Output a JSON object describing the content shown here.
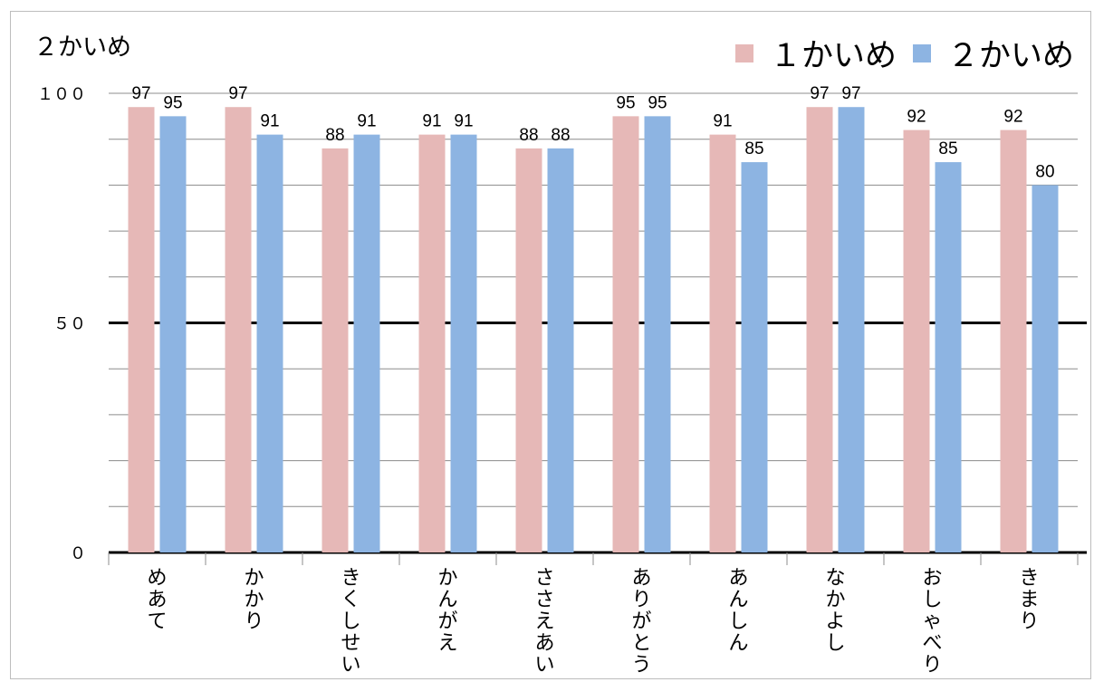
{
  "chart_data": {
    "type": "bar",
    "title": "２かいめ",
    "categories": [
      "めあて",
      "かかり",
      "きくしせい",
      "かんがえ",
      "ささえあい",
      "ありがとう",
      "あんしん",
      "なかよし",
      "おしゃべり",
      "きまり"
    ],
    "series": [
      {
        "name": "１かいめ",
        "color": "#e6b8b7",
        "values": [
          97,
          97,
          88,
          91,
          88,
          95,
          91,
          97,
          92,
          92
        ]
      },
      {
        "name": "２かいめ",
        "color": "#8db4e2",
        "values": [
          95,
          91,
          91,
          91,
          88,
          95,
          85,
          97,
          85,
          80
        ]
      }
    ],
    "ylim": [
      0,
      100
    ],
    "yticks": [
      "０",
      "５０",
      "１００"
    ],
    "ytick_values": [
      0,
      50,
      100
    ],
    "grid": true,
    "legend": "top-right"
  }
}
